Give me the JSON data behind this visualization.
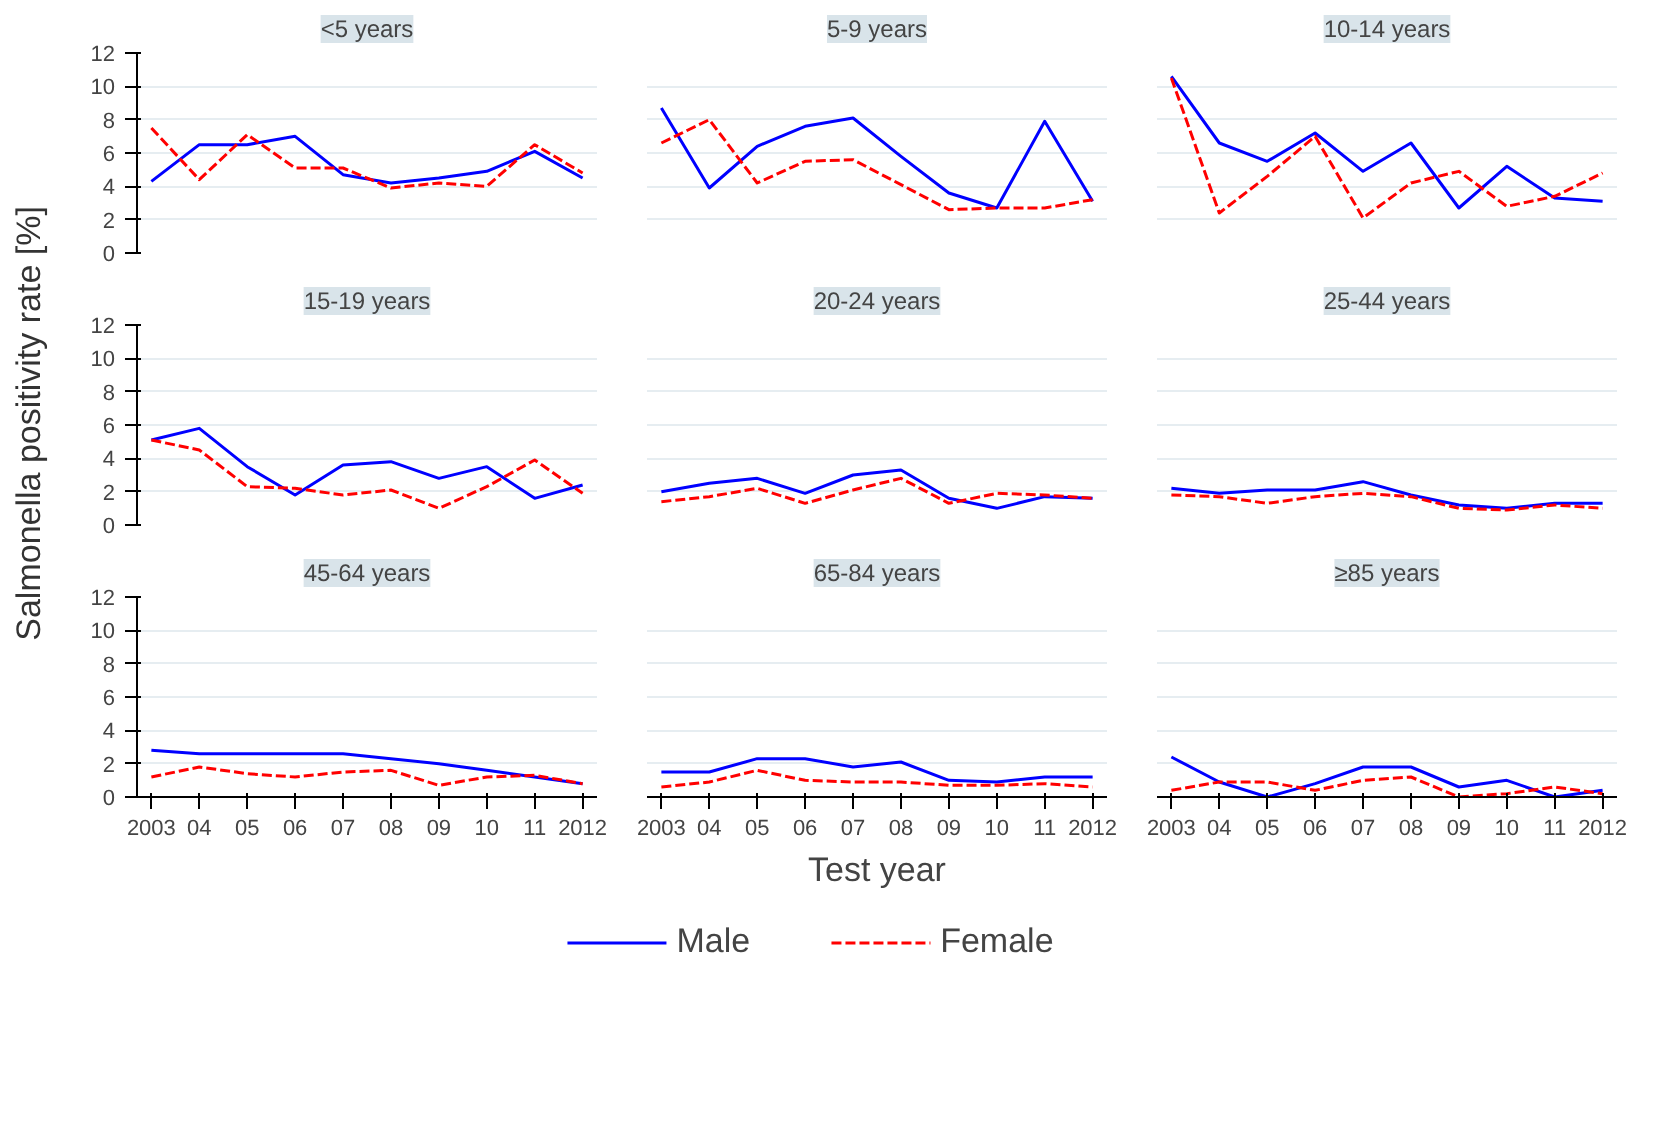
{
  "chart_data": [
    {
      "type": "line",
      "title": "<5 years",
      "x": [
        2003,
        2004,
        2005,
        2006,
        2007,
        2008,
        2009,
        2010,
        2011,
        2012
      ],
      "xlim": [
        2002.7,
        2012.3
      ],
      "ylim": [
        0,
        12
      ],
      "yticks": [
        0,
        2,
        4,
        6,
        8,
        10,
        12
      ],
      "grid": "y",
      "tick_labels": "y",
      "series": [
        {
          "color": "#0000ff",
          "line_style": "solid",
          "values": [
            4.3,
            6.5,
            6.5,
            7.0,
            4.7,
            4.2,
            4.5,
            4.9,
            6.1,
            4.5
          ]
        },
        {
          "color": "#ff0000",
          "line_style": "dashed",
          "values": [
            7.5,
            4.4,
            7.1,
            5.1,
            5.1,
            3.9,
            4.2,
            4.0,
            6.5,
            4.8
          ]
        }
      ]
    },
    {
      "type": "line",
      "title": "5-9 years",
      "x": [
        2003,
        2004,
        2005,
        2006,
        2007,
        2008,
        2009,
        2010,
        2011,
        2012
      ],
      "xlim": [
        2002.7,
        2012.3
      ],
      "ylim": [
        0,
        12
      ],
      "grid": "y",
      "tick_labels": false,
      "series": [
        {
          "color": "#0000ff",
          "line_style": "solid",
          "values": [
            8.7,
            3.9,
            6.4,
            7.6,
            8.1,
            5.8,
            3.6,
            2.7,
            7.9,
            3.1
          ]
        },
        {
          "color": "#ff0000",
          "line_style": "dashed",
          "values": [
            6.6,
            8.0,
            4.2,
            5.5,
            5.6,
            4.1,
            2.6,
            2.7,
            2.7,
            3.2
          ]
        }
      ]
    },
    {
      "type": "line",
      "title": "10-14 years",
      "x": [
        2003,
        2004,
        2005,
        2006,
        2007,
        2008,
        2009,
        2010,
        2011,
        2012
      ],
      "xlim": [
        2002.7,
        2012.3
      ],
      "ylim": [
        0,
        12
      ],
      "grid": "y",
      "tick_labels": false,
      "series": [
        {
          "color": "#0000ff",
          "line_style": "solid",
          "values": [
            10.6,
            6.6,
            5.5,
            7.2,
            4.9,
            6.6,
            2.7,
            5.2,
            3.3,
            3.1
          ]
        },
        {
          "color": "#ff0000",
          "line_style": "dashed",
          "values": [
            10.5,
            2.4,
            4.6,
            7.0,
            2.1,
            4.2,
            4.9,
            2.8,
            3.4,
            4.8
          ]
        }
      ]
    },
    {
      "type": "line",
      "title": "15-19 years",
      "ylabel": "Salmonella positivity rate [%]",
      "x": [
        2003,
        2004,
        2005,
        2006,
        2007,
        2008,
        2009,
        2010,
        2011,
        2012
      ],
      "xlim": [
        2002.7,
        2012.3
      ],
      "ylim": [
        0,
        12
      ],
      "yticks": [
        0,
        2,
        4,
        6,
        8,
        10,
        12
      ],
      "grid": "y",
      "tick_labels": "y",
      "series": [
        {
          "color": "#0000ff",
          "line_style": "solid",
          "values": [
            5.1,
            5.8,
            3.5,
            1.8,
            3.6,
            3.8,
            2.8,
            3.5,
            1.6,
            2.4
          ]
        },
        {
          "color": "#ff0000",
          "line_style": "dashed",
          "values": [
            5.1,
            4.5,
            2.3,
            2.2,
            1.8,
            2.1,
            1.0,
            2.3,
            3.9,
            1.9
          ]
        }
      ]
    },
    {
      "type": "line",
      "title": "20-24 years",
      "x": [
        2003,
        2004,
        2005,
        2006,
        2007,
        2008,
        2009,
        2010,
        2011,
        2012
      ],
      "xlim": [
        2002.7,
        2012.3
      ],
      "ylim": [
        0,
        12
      ],
      "grid": "y",
      "tick_labels": false,
      "series": [
        {
          "color": "#0000ff",
          "line_style": "solid",
          "values": [
            2.0,
            2.5,
            2.8,
            1.9,
            3.0,
            3.3,
            1.6,
            1.0,
            1.7,
            1.6
          ]
        },
        {
          "color": "#ff0000",
          "line_style": "dashed",
          "values": [
            1.4,
            1.7,
            2.2,
            1.3,
            2.1,
            2.8,
            1.3,
            1.9,
            1.8,
            1.6
          ]
        }
      ]
    },
    {
      "type": "line",
      "title": "25-44 years",
      "x": [
        2003,
        2004,
        2005,
        2006,
        2007,
        2008,
        2009,
        2010,
        2011,
        2012
      ],
      "xlim": [
        2002.7,
        2012.3
      ],
      "ylim": [
        0,
        12
      ],
      "grid": "y",
      "tick_labels": false,
      "series": [
        {
          "color": "#0000ff",
          "line_style": "solid",
          "values": [
            2.2,
            1.9,
            2.1,
            2.1,
            2.6,
            1.8,
            1.2,
            1.0,
            1.3,
            1.3
          ]
        },
        {
          "color": "#ff0000",
          "line_style": "dashed",
          "values": [
            1.8,
            1.7,
            1.3,
            1.7,
            1.9,
            1.7,
            1.0,
            0.9,
            1.2,
            1.0
          ]
        }
      ]
    },
    {
      "type": "line",
      "title": "45-64 years",
      "x": [
        2003,
        2004,
        2005,
        2006,
        2007,
        2008,
        2009,
        2010,
        2011,
        2012
      ],
      "xlim": [
        2002.7,
        2012.3
      ],
      "ylim": [
        0,
        12
      ],
      "yticks": [
        0,
        2,
        4,
        6,
        8,
        10,
        12
      ],
      "xticks": [
        2003,
        {
          "value": 2004,
          "label": "04"
        },
        {
          "value": 2005,
          "label": "05"
        },
        {
          "value": 2006,
          "label": "06"
        },
        {
          "value": 2007,
          "label": "07"
        },
        {
          "value": 2008,
          "label": "08"
        },
        {
          "value": 2009,
          "label": "09"
        },
        {
          "value": 2010,
          "label": "10"
        },
        {
          "value": 2011,
          "label": "11"
        },
        2012
      ],
      "grid": "y",
      "series": [
        {
          "color": "#0000ff",
          "line_style": "solid",
          "values": [
            2.8,
            2.6,
            2.6,
            2.6,
            2.6,
            2.3,
            2.0,
            1.6,
            1.2,
            0.8
          ]
        },
        {
          "color": "#ff0000",
          "line_style": "dashed",
          "values": [
            1.2,
            1.8,
            1.4,
            1.2,
            1.5,
            1.6,
            0.7,
            1.2,
            1.3,
            0.8
          ]
        }
      ]
    },
    {
      "type": "line",
      "title": "65-84 years",
      "xlabel": "Test year",
      "legend": "bottom",
      "x": [
        2003,
        2004,
        2005,
        2006,
        2007,
        2008,
        2009,
        2010,
        2011,
        2012
      ],
      "xlim": [
        2002.7,
        2012.3
      ],
      "ylim": [
        0,
        12
      ],
      "xticks": [
        2003,
        {
          "value": 2004,
          "label": "04"
        },
        {
          "value": 2005,
          "label": "05"
        },
        {
          "value": 2006,
          "label": "06"
        },
        {
          "value": 2007,
          "label": "07"
        },
        {
          "value": 2008,
          "label": "08"
        },
        {
          "value": 2009,
          "label": "09"
        },
        {
          "value": 2010,
          "label": "10"
        },
        {
          "value": 2011,
          "label": "11"
        },
        2012
      ],
      "grid": "y",
      "tick_labels": "x",
      "series": [
        {
          "name": "Male",
          "color": "#0000ff",
          "line_style": "solid",
          "values": [
            1.5,
            1.5,
            2.3,
            2.3,
            1.8,
            2.1,
            1.0,
            0.9,
            1.2,
            1.2
          ]
        },
        {
          "name": "Female",
          "color": "#ff0000",
          "line_style": "dashed",
          "values": [
            0.6,
            0.9,
            1.6,
            1.0,
            0.9,
            0.9,
            0.7,
            0.7,
            0.8,
            0.6
          ]
        }
      ]
    },
    {
      "type": "line",
      "title": "≥85 years",
      "x": [
        2003,
        2004,
        2005,
        2006,
        2007,
        2008,
        2009,
        2010,
        2011,
        2012
      ],
      "xlim": [
        2002.7,
        2012.3
      ],
      "ylim": [
        0,
        12
      ],
      "xticks": [
        2003,
        {
          "value": 2004,
          "label": "04"
        },
        {
          "value": 2005,
          "label": "05"
        },
        {
          "value": 2006,
          "label": "06"
        },
        {
          "value": 2007,
          "label": "07"
        },
        {
          "value": 2008,
          "label": "08"
        },
        {
          "value": 2009,
          "label": "09"
        },
        {
          "value": 2010,
          "label": "10"
        },
        {
          "value": 2011,
          "label": "11"
        },
        2012
      ],
      "grid": "y",
      "tick_labels": "x",
      "series": [
        {
          "color": "#0000ff",
          "line_style": "solid",
          "values": [
            2.4,
            0.9,
            0.0,
            0.8,
            1.8,
            1.8,
            0.6,
            1.0,
            0.0,
            0.4
          ]
        },
        {
          "color": "#ff0000",
          "line_style": "dashed",
          "values": [
            0.4,
            0.9,
            0.9,
            0.4,
            1.0,
            1.2,
            0.0,
            0.2,
            0.6,
            0.2
          ]
        }
      ]
    }
  ]
}
